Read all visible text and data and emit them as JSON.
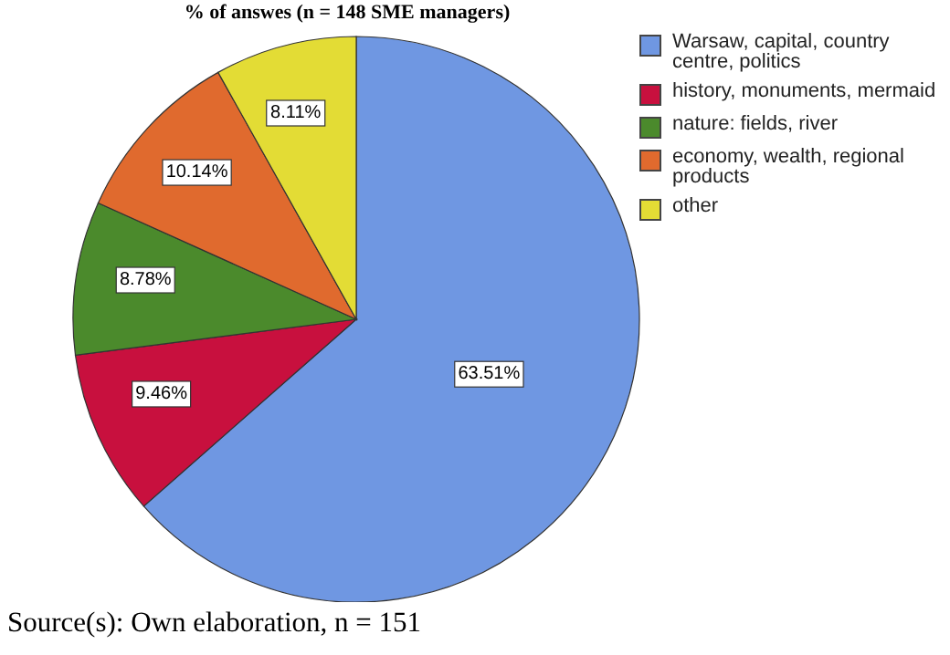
{
  "chart_data": {
    "type": "pie",
    "title": "% of answes (n = 148 SME managers)",
    "categories": [
      "Warsaw, capital, country centre, politics",
      "history, monuments, mermaid",
      "nature: fields, river",
      "economy, wealth, regional products",
      "other"
    ],
    "values": [
      63.51,
      9.46,
      8.78,
      10.14,
      8.11
    ],
    "colors": [
      "#6f97e2",
      "#c8103e",
      "#4b8a2c",
      "#e06a2e",
      "#e3dc35"
    ],
    "value_labels": [
      "63.51%",
      "9.46%",
      "8.78%",
      "10.14%",
      "8.11%"
    ],
    "legend": "top right",
    "annotations": [
      "Source(s): Own elaboration, n = 151"
    ]
  }
}
